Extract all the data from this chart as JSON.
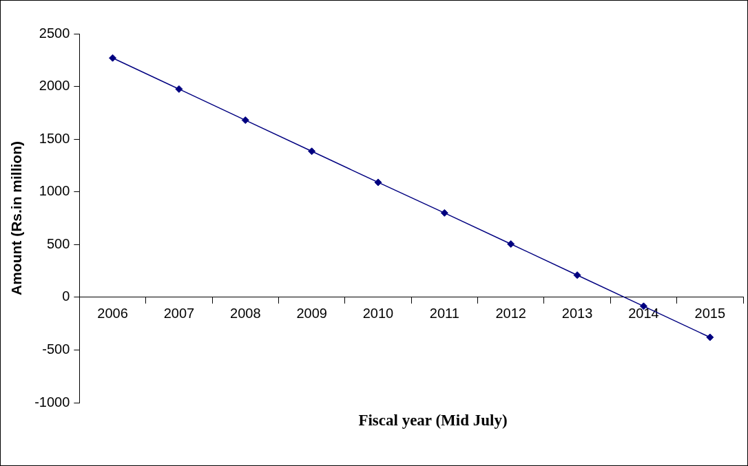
{
  "chart_data": {
    "type": "line",
    "xlabel": "Fiscal year (Mid July)",
    "ylabel": "Amount (Rs.in million)",
    "categories": [
      "2006",
      "2007",
      "2008",
      "2009",
      "2010",
      "2011",
      "2012",
      "2013",
      "2014",
      "2015"
    ],
    "series": [
      {
        "color": "#000080",
        "values": [
          2270,
          1975,
          1680,
          1385,
          1090,
          800,
          505,
          210,
          -85,
          -380
        ]
      }
    ],
    "ylim": [
      -1000,
      2500
    ],
    "yticks": [
      -1000,
      -500,
      0,
      500,
      1000,
      1500,
      2000,
      2500
    ],
    "grid": false,
    "legend": false,
    "marker": "diamond",
    "line_style": "solid"
  }
}
